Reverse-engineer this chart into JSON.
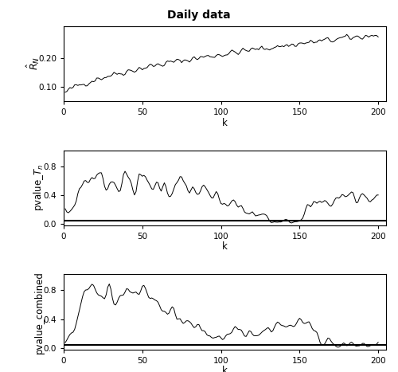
{
  "title": "Daily data",
  "xlabel": "k",
  "xlim": [
    0,
    205
  ],
  "n_points": 200,
  "plot1_ylabel": "$\\hat{R}_N$",
  "plot2_ylabel": "pvalue_$T_n$",
  "plot3_ylabel": "pvalue_combined",
  "hline_y": 0.05,
  "background_color": "#ffffff",
  "line_color": "#000000",
  "hline_color": "#000000",
  "figsize": [
    5.0,
    4.67
  ],
  "dpi": 100
}
